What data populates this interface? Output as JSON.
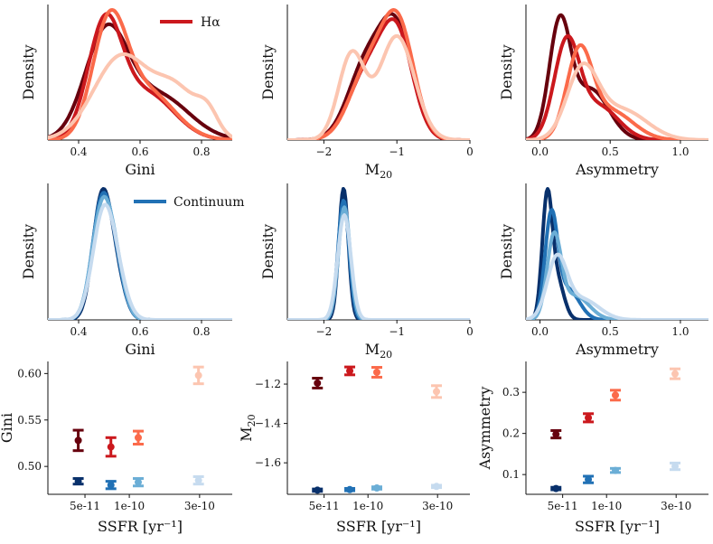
{
  "figure": {
    "legend_halpha": "Hα",
    "legend_continuum": "Continuum",
    "density_label": "Density",
    "sub_20": "20",
    "colors": {
      "halpha": [
        "#67000d",
        "#cb181d",
        "#fb6a4a",
        "#fcc5b0"
      ],
      "continuum": [
        "#08306b",
        "#2171b5",
        "#6baed6",
        "#c6dbef"
      ]
    }
  },
  "chart_data": [
    {
      "id": "ha-gini",
      "type": "density",
      "xlabel": "Gini",
      "ylabel": "Density",
      "xlim": [
        0.3,
        0.9
      ],
      "xticks": [
        0.4,
        0.6,
        0.8
      ],
      "ticklabels": [
        "0.4",
        "0.6",
        "0.8"
      ],
      "legend": "Hα",
      "series": [
        {
          "mode": "gauss",
          "comps": [
            [
              0.49,
              0.07,
              1.0
            ],
            [
              0.66,
              0.1,
              0.42
            ]
          ]
        },
        {
          "mode": "gauss",
          "comps": [
            [
              0.485,
              0.055,
              1.0
            ],
            [
              0.62,
              0.09,
              0.42
            ]
          ]
        },
        {
          "mode": "gauss",
          "comps": [
            [
              0.5,
              0.055,
              1.0
            ],
            [
              0.62,
              0.09,
              0.45
            ]
          ]
        },
        {
          "mode": "gauss",
          "comps": [
            [
              0.54,
              0.09,
              1.0
            ],
            [
              0.72,
              0.07,
              0.55
            ],
            [
              0.82,
              0.035,
              0.25
            ]
          ]
        }
      ],
      "peaks": [
        0.89,
        0.97,
        1.0,
        0.66
      ]
    },
    {
      "id": "ha-m20",
      "type": "density",
      "xlabel": "M20",
      "ylabel": "Density",
      "xlim": [
        -2.5,
        0
      ],
      "xticks": [
        -2,
        -1,
        0
      ],
      "ticklabels": [
        "−2",
        "−1",
        "0"
      ],
      "series": [
        {
          "mode": "gauss",
          "comps": [
            [
              -1.0,
              0.22,
              1.0
            ],
            [
              -1.42,
              0.25,
              0.72
            ]
          ]
        },
        {
          "mode": "gauss",
          "comps": [
            [
              -1.0,
              0.22,
              1.0
            ],
            [
              -1.42,
              0.25,
              0.62
            ]
          ]
        },
        {
          "mode": "gauss",
          "comps": [
            [
              -0.98,
              0.22,
              1.0
            ],
            [
              -1.4,
              0.25,
              0.62
            ]
          ]
        },
        {
          "mode": "gauss",
          "comps": [
            [
              -1.0,
              0.24,
              1.0
            ],
            [
              -1.62,
              0.18,
              0.82
            ]
          ]
        }
      ],
      "peaks": [
        0.97,
        0.93,
        1.0,
        0.8
      ]
    },
    {
      "id": "ha-asym",
      "type": "density",
      "xlabel": "Asymmetry",
      "ylabel": "Density",
      "xlim": [
        -0.1,
        1.2
      ],
      "xticks": [
        0.0,
        0.5,
        1.0
      ],
      "ticklabels": [
        "0.0",
        "0.5",
        "1.0"
      ],
      "series": [
        {
          "mode": "gauss",
          "comps": [
            [
              0.14,
              0.075,
              1.0
            ],
            [
              0.36,
              0.13,
              0.45
            ]
          ]
        },
        {
          "mode": "gauss",
          "comps": [
            [
              0.19,
              0.09,
              1.0
            ],
            [
              0.42,
              0.14,
              0.35
            ]
          ]
        },
        {
          "mode": "gauss",
          "comps": [
            [
              0.28,
              0.09,
              1.0
            ],
            [
              0.5,
              0.16,
              0.35
            ]
          ]
        },
        {
          "mode": "gauss",
          "comps": [
            [
              0.3,
              0.11,
              1.0
            ],
            [
              0.58,
              0.18,
              0.45
            ]
          ]
        }
      ],
      "peaks": [
        0.96,
        0.8,
        0.73,
        0.59
      ]
    },
    {
      "id": "co-gini",
      "type": "density",
      "xlabel": "Gini",
      "ylabel": "Density",
      "xlim": [
        0.3,
        0.9
      ],
      "xticks": [
        0.4,
        0.6,
        0.8
      ],
      "ticklabels": [
        "0.4",
        "0.6",
        "0.8"
      ],
      "legend": "Continuum",
      "series": [
        {
          "mode": "gauss",
          "comps": [
            [
              0.475,
              0.03,
              1.0
            ],
            [
              0.52,
              0.03,
              0.35
            ]
          ]
        },
        {
          "mode": "gauss",
          "comps": [
            [
              0.475,
              0.032,
              1.0
            ],
            [
              0.52,
              0.03,
              0.35
            ]
          ]
        },
        {
          "mode": "gauss",
          "comps": [
            [
              0.475,
              0.033,
              1.0
            ],
            [
              0.52,
              0.03,
              0.4
            ]
          ]
        },
        {
          "mode": "gauss",
          "comps": [
            [
              0.478,
              0.035,
              1.0
            ],
            [
              0.52,
              0.035,
              0.4
            ]
          ]
        }
      ],
      "peaks": [
        1.0,
        0.97,
        0.94,
        0.88
      ]
    },
    {
      "id": "co-m20",
      "type": "density",
      "xlabel": "M20",
      "ylabel": "Density",
      "xlim": [
        -2.5,
        0
      ],
      "xticks": [
        -2,
        -1,
        0
      ],
      "ticklabels": [
        "−2",
        "−1",
        "0"
      ],
      "series": [
        {
          "mode": "gauss",
          "comps": [
            [
              -1.73,
              0.065,
              1.0
            ]
          ]
        },
        {
          "mode": "gauss",
          "comps": [
            [
              -1.73,
              0.075,
              1.0
            ]
          ]
        },
        {
          "mode": "gauss",
          "comps": [
            [
              -1.72,
              0.08,
              1.0
            ]
          ]
        },
        {
          "mode": "gauss",
          "comps": [
            [
              -1.72,
              0.09,
              1.0
            ]
          ]
        }
      ],
      "peaks": [
        1.0,
        0.91,
        0.86,
        0.8
      ]
    },
    {
      "id": "co-asym",
      "type": "density",
      "xlabel": "Asymmetry",
      "ylabel": "Density",
      "xlim": [
        -0.1,
        1.2
      ],
      "xticks": [
        0.0,
        0.5,
        1.0
      ],
      "ticklabels": [
        "0.0",
        "0.5",
        "1.0"
      ],
      "series": [
        {
          "mode": "gauss",
          "comps": [
            [
              0.05,
              0.035,
              1.0
            ],
            [
              0.12,
              0.05,
              0.35
            ]
          ]
        },
        {
          "mode": "gauss",
          "comps": [
            [
              0.08,
              0.045,
              1.0
            ],
            [
              0.2,
              0.08,
              0.3
            ]
          ]
        },
        {
          "mode": "gauss",
          "comps": [
            [
              0.1,
              0.05,
              1.0
            ],
            [
              0.25,
              0.1,
              0.3
            ]
          ]
        },
        {
          "mode": "gauss",
          "comps": [
            [
              0.12,
              0.07,
              1.0
            ],
            [
              0.3,
              0.12,
              0.35
            ]
          ]
        }
      ],
      "peaks": [
        1.0,
        0.84,
        0.67,
        0.5
      ]
    },
    {
      "id": "ssfr-gini",
      "type": "errorbar",
      "xlabel": "SSFR [yr⁻¹]",
      "ylabel": "Gini",
      "xscale": "log",
      "xlim": [
        2.8e-11,
        5e-10
      ],
      "ylim": [
        0.47,
        0.613
      ],
      "yticks": [
        0.5,
        0.55,
        0.6
      ],
      "yticklabels": [
        "0.50",
        "0.55",
        "0.60"
      ],
      "xticks": [
        5e-11,
        1e-10,
        3e-10
      ],
      "xticklabels": [
        "5e-11",
        "1e-10",
        "3e-10"
      ],
      "ssfr": [
        4.5e-11,
        7.5e-11,
        1.15e-10,
        2.95e-10
      ],
      "halpha": [
        [
          0.528,
          0.011
        ],
        [
          0.521,
          0.01
        ],
        [
          0.531,
          0.007
        ],
        [
          0.598,
          0.009
        ]
      ],
      "continuum": [
        [
          0.484,
          0.003
        ],
        [
          0.48,
          0.004
        ],
        [
          0.483,
          0.004
        ],
        [
          0.485,
          0.004
        ]
      ]
    },
    {
      "id": "ssfr-m20",
      "type": "errorbar",
      "xlabel": "SSFR [yr⁻¹]",
      "ylabel": "M20",
      "xscale": "log",
      "xlim": [
        2.8e-11,
        5e-10
      ],
      "ylim": [
        -1.76,
        -1.085
      ],
      "yticks": [
        -1.6,
        -1.4,
        -1.2
      ],
      "yticklabels": [
        "−1.6",
        "−1.4",
        "−1.2"
      ],
      "xticks": [
        5e-11,
        1e-10,
        3e-10
      ],
      "xticklabels": [
        "5e-11",
        "1e-10",
        "3e-10"
      ],
      "ssfr": [
        4.5e-11,
        7.5e-11,
        1.15e-10,
        2.95e-10
      ],
      "halpha": [
        [
          -1.195,
          0.025
        ],
        [
          -1.133,
          0.02
        ],
        [
          -1.14,
          0.025
        ],
        [
          -1.238,
          0.03
        ]
      ],
      "continuum": [
        [
          -1.739,
          0.006
        ],
        [
          -1.736,
          0.006
        ],
        [
          -1.728,
          0.006
        ],
        [
          -1.72,
          0.006
        ]
      ]
    },
    {
      "id": "ssfr-asym",
      "type": "errorbar",
      "xlabel": "SSFR [yr⁻¹]",
      "ylabel": "Asymmetry",
      "xscale": "log",
      "xlim": [
        2.8e-11,
        5e-10
      ],
      "ylim": [
        0.052,
        0.375
      ],
      "yticks": [
        0.1,
        0.2,
        0.3
      ],
      "yticklabels": [
        "0.1",
        "0.2",
        "0.3"
      ],
      "xticks": [
        5e-11,
        1e-10,
        3e-10
      ],
      "xticklabels": [
        "5e-11",
        "1e-10",
        "3e-10"
      ],
      "ssfr": [
        4.5e-11,
        7.5e-11,
        1.15e-10,
        2.95e-10
      ],
      "halpha": [
        [
          0.198,
          0.009
        ],
        [
          0.238,
          0.01
        ],
        [
          0.293,
          0.012
        ],
        [
          0.345,
          0.012
        ]
      ],
      "continuum": [
        [
          0.066,
          0.003
        ],
        [
          0.088,
          0.008
        ],
        [
          0.11,
          0.005
        ],
        [
          0.12,
          0.008
        ]
      ]
    }
  ]
}
